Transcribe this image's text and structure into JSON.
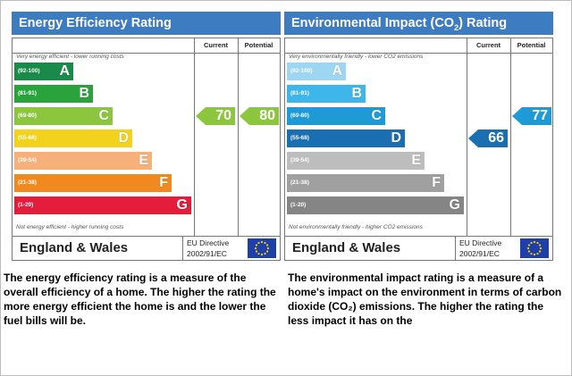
{
  "chart_data": [
    {
      "type": "bar",
      "title": "Energy Efficiency Rating",
      "columns": [
        "Current",
        "Potential"
      ],
      "top_note": "Very energy efficient - lower running costs",
      "bottom_note": "Not energy efficient - higher running costs",
      "bands": [
        {
          "range": "(92-100)",
          "letter": "A",
          "color": "#1a8a4a"
        },
        {
          "range": "(81-91)",
          "letter": "B",
          "color": "#2aa33d"
        },
        {
          "range": "(69-80)",
          "letter": "C",
          "color": "#8cc63e"
        },
        {
          "range": "(55-68)",
          "letter": "D",
          "color": "#f2d21a"
        },
        {
          "range": "(39-54)",
          "letter": "E",
          "color": "#f6b07a"
        },
        {
          "range": "(21-38)",
          "letter": "F",
          "color": "#f08a1e"
        },
        {
          "range": "(1-20)",
          "letter": "G",
          "color": "#e31d3b"
        }
      ],
      "current": {
        "value": 70,
        "band": "C",
        "color": "#8cc63e"
      },
      "potential": {
        "value": 80,
        "band": "C",
        "color": "#8cc63e"
      },
      "region": "England & Wales",
      "directive": [
        "EU Directive",
        "2002/91/EC"
      ]
    },
    {
      "type": "bar",
      "title_prefix": "Environmental Impact (CO",
      "title_sub": "2",
      "title_suffix": ") Rating",
      "columns": [
        "Current",
        "Potential"
      ],
      "top_note": "Very environmentally friendly - lower CO2 emissions",
      "bottom_note": "Not environmentally friendly - higher CO2 emissions",
      "bands": [
        {
          "range": "(92-100)",
          "letter": "A",
          "color": "#9dd6f2"
        },
        {
          "range": "(81-91)",
          "letter": "B",
          "color": "#3fb6ea"
        },
        {
          "range": "(69-80)",
          "letter": "C",
          "color": "#1e9ad6"
        },
        {
          "range": "(55-68)",
          "letter": "D",
          "color": "#1a6fb3"
        },
        {
          "range": "(39-54)",
          "letter": "E",
          "color": "#bdbdbd"
        },
        {
          "range": "(21-38)",
          "letter": "F",
          "color": "#a0a0a0"
        },
        {
          "range": "(1-20)",
          "letter": "G",
          "color": "#858585"
        }
      ],
      "current": {
        "value": 66,
        "band": "D",
        "color": "#1a6fb3"
      },
      "potential": {
        "value": 77,
        "band": "C",
        "color": "#1e9ad6"
      },
      "region": "England & Wales",
      "directive": [
        "EU Directive",
        "2002/91/EC"
      ]
    }
  ],
  "descriptions": {
    "energy": "The energy efficiency rating is a measure of the overall efficiency of a home. The higher the rating the more energy efficient the home is and the lower the fuel bills will be.",
    "environmental": "The environmental impact rating is a measure of a home's impact on the environment in terms of carbon dioxide (CO₂) emissions. The higher the rating the less impact it has on the"
  },
  "colors": {
    "title_bar": "#3d7cc1",
    "eu_flag": "#1f3fa8",
    "eu_stars": "#ffd400"
  },
  "icons": {
    "flag": "eu-flag-icon"
  }
}
